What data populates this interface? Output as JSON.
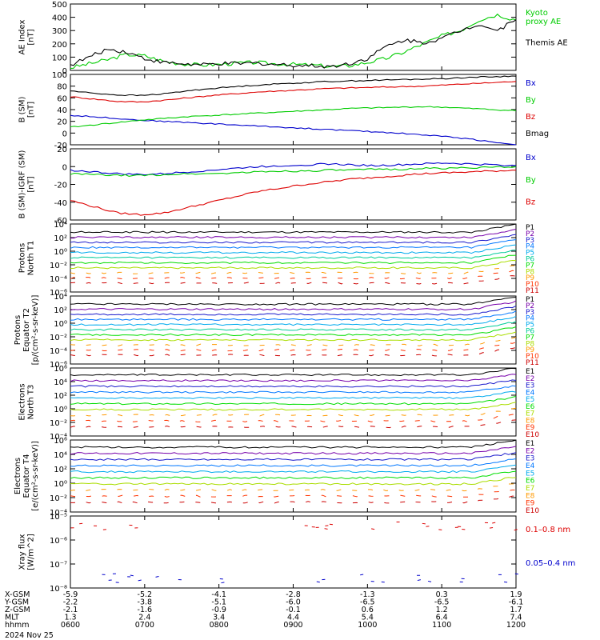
{
  "colors": {
    "black": "#000000",
    "red": "#dd0000",
    "green": "#00cc00",
    "blue": "#0000cc",
    "purple": "#6600aa",
    "cyan": "#00cccc",
    "yellow": "#e8d000",
    "orange": "#ff8800",
    "p_palette": [
      "#000000",
      "#7700aa",
      "#1a1acc",
      "#0077ff",
      "#00aaee",
      "#00cc99",
      "#00dd00",
      "#aadd00",
      "#ff9900",
      "#ff3300",
      "#cc0000"
    ]
  },
  "chart_data": [
    {
      "type": "line",
      "id": "ae",
      "ylabel": "AE Index\n[nT]",
      "ylim": [
        0,
        500
      ],
      "yticks": [
        "0",
        "100",
        "200",
        "300",
        "400",
        "500"
      ],
      "series": [
        {
          "name": "Kyoto\nproxy AE",
          "color": "green",
          "x": [
            0,
            10,
            20,
            30,
            40,
            50,
            60,
            70,
            80,
            90,
            100,
            110,
            120,
            130,
            140,
            150,
            160,
            170,
            180,
            190,
            200,
            210,
            220,
            230,
            240
          ],
          "values": [
            20,
            50,
            80,
            120,
            110,
            70,
            50,
            40,
            45,
            55,
            60,
            50,
            45,
            40,
            30,
            35,
            60,
            90,
            140,
            200,
            260,
            300,
            380,
            420,
            380
          ]
        },
        {
          "name": "Themis AE",
          "color": "black",
          "x": [
            0,
            10,
            20,
            30,
            40,
            50,
            60,
            70,
            80,
            90,
            100,
            110,
            120,
            130,
            140,
            150,
            160,
            170,
            180,
            190,
            200,
            210,
            220,
            230,
            240
          ],
          "values": [
            40,
            100,
            160,
            140,
            90,
            60,
            50,
            40,
            50,
            50,
            55,
            45,
            40,
            35,
            30,
            50,
            90,
            180,
            230,
            210,
            240,
            300,
            350,
            300,
            380
          ]
        }
      ]
    },
    {
      "type": "line",
      "id": "bsm",
      "ylabel": "B (SM)\n[nT]",
      "ylim": [
        -20,
        100
      ],
      "yticks": [
        "-20",
        "0",
        "20",
        "40",
        "60",
        "80",
        "100"
      ],
      "series": [
        {
          "name": "Bx",
          "color": "blue",
          "values": [
            30,
            28,
            25,
            22,
            20,
            18,
            16,
            14,
            12,
            10,
            8,
            6,
            4,
            2,
            0,
            -3,
            -6,
            -10,
            -15,
            -20
          ]
        },
        {
          "name": "By",
          "color": "green",
          "values": [
            10,
            14,
            18,
            22,
            25,
            28,
            30,
            32,
            34,
            36,
            38,
            40,
            42,
            43,
            44,
            45,
            44,
            42,
            40,
            38
          ]
        },
        {
          "name": "Bz",
          "color": "red",
          "values": [
            62,
            58,
            54,
            53,
            56,
            60,
            64,
            67,
            70,
            72,
            74,
            76,
            77,
            78,
            79,
            80,
            82,
            84,
            86,
            88
          ]
        },
        {
          "name": "Bmag",
          "color": "black",
          "values": [
            72,
            68,
            65,
            64,
            67,
            72,
            76,
            79,
            82,
            84,
            86,
            88,
            89,
            90,
            91,
            92,
            93,
            95,
            96,
            97
          ]
        }
      ]
    },
    {
      "type": "line",
      "id": "bdiff",
      "ylabel": "B (SM)-IGRF (SM)\n[nT]",
      "ylim": [
        -60,
        20
      ],
      "yticks": [
        "-60",
        "-40",
        "-20",
        "0",
        "20"
      ],
      "series": [
        {
          "name": "Bx",
          "color": "blue",
          "values": [
            -4,
            -6,
            -8,
            -9,
            -8,
            -6,
            -4,
            -2,
            0,
            1,
            2,
            3,
            2,
            1,
            2,
            3,
            4,
            3,
            2,
            1
          ]
        },
        {
          "name": "By",
          "color": "green",
          "values": [
            -8,
            -9,
            -10,
            -10,
            -9,
            -8,
            -8,
            -7,
            -6,
            -5,
            -5,
            -4,
            -4,
            -3,
            -3,
            -2,
            -2,
            -1,
            -1,
            0
          ]
        },
        {
          "name": "Bz",
          "color": "red",
          "values": [
            -38,
            -45,
            -52,
            -54,
            -52,
            -46,
            -40,
            -34,
            -28,
            -24,
            -20,
            -17,
            -14,
            -12,
            -10,
            -8,
            -7,
            -6,
            -5,
            -4
          ]
        }
      ]
    },
    {
      "type": "line",
      "id": "pn",
      "log": true,
      "ylabel": "Protons\nNorth T1",
      "ylim_exp": [
        -6,
        4
      ],
      "yticks": [
        "10⁻⁶",
        "10⁻⁴",
        "10⁻²",
        "10⁰",
        "10²",
        "10⁴"
      ],
      "legend": [
        "P1",
        "P2",
        "P3",
        "P4",
        "P5",
        "P6",
        "P7",
        "P8",
        "P9",
        "P10",
        "P11"
      ]
    },
    {
      "type": "line",
      "id": "pe",
      "log": true,
      "ylabel": "Protons\nEquator T2\n[p/(cm²-s-sr-keV)]",
      "ylim_exp": [
        -6,
        4
      ],
      "yticks": [
        "10⁻⁶",
        "10⁻⁴",
        "10⁻²",
        "10⁰",
        "10²",
        "10⁴"
      ],
      "legend": [
        "P1",
        "P2",
        "P3",
        "P4",
        "P5",
        "P6",
        "P7",
        "P8",
        "P9",
        "P10",
        "P11"
      ]
    },
    {
      "type": "line",
      "id": "en",
      "log": true,
      "ylabel": "Electrons\nNorth T3",
      "ylim_exp": [
        -4,
        6
      ],
      "yticks": [
        "10⁻⁴",
        "10⁻²",
        "10⁰",
        "10²",
        "10⁴",
        "10⁶"
      ],
      "legend": [
        "E1",
        "E2",
        "E3",
        "E4",
        "E5",
        "E6",
        "E7",
        "E8",
        "E9",
        "E10"
      ]
    },
    {
      "type": "line",
      "id": "ee",
      "log": true,
      "ylabel": "Electrons\nEquator T4\n[e/(cm²-s-sr-keV)]",
      "ylim_exp": [
        -4,
        6
      ],
      "yticks": [
        "10⁻⁴",
        "10⁻²",
        "10⁰",
        "10²",
        "10⁴",
        "10⁶"
      ],
      "legend": [
        "E1",
        "E2",
        "E3",
        "E4",
        "E5",
        "E6",
        "E7",
        "E8",
        "E9",
        "E10"
      ]
    },
    {
      "type": "scatter",
      "id": "xray",
      "log": true,
      "ylabel": "Xray flux\n[W/m^2]",
      "ylim_exp": [
        -8,
        -5
      ],
      "yticks": [
        "10⁻⁸",
        "10⁻⁷",
        "10⁻⁶",
        "10⁻⁵"
      ],
      "series": [
        {
          "name": "0.1–0.8 nm",
          "color": "red"
        },
        {
          "name": "0.05–0.4 nm",
          "color": "blue"
        }
      ]
    }
  ],
  "axis": {
    "rows": [
      {
        "label": "X-GSM",
        "values": [
          "-5.9",
          "-5.2",
          "-4.1",
          "-2.8",
          "-1.3",
          "0.3",
          "1.9"
        ]
      },
      {
        "label": "Y-GSM",
        "values": [
          "-2.2",
          "-3.8",
          "-5.1",
          "-6.0",
          "-6.5",
          "-6.5",
          "-6.1"
        ]
      },
      {
        "label": "Z-GSM",
        "values": [
          "-2.1",
          "-1.6",
          "-0.9",
          "-0.1",
          "0.6",
          "1.2",
          "1.7"
        ]
      },
      {
        "label": "MLT",
        "values": [
          "1.3",
          "2.4",
          "3.4",
          "4.4",
          "5.4",
          "6.4",
          "7.4"
        ]
      },
      {
        "label": "hhmm",
        "values": [
          "0600",
          "0700",
          "0800",
          "0900",
          "1000",
          "1100",
          "1200"
        ]
      }
    ],
    "date": "2024 Nov 25"
  }
}
